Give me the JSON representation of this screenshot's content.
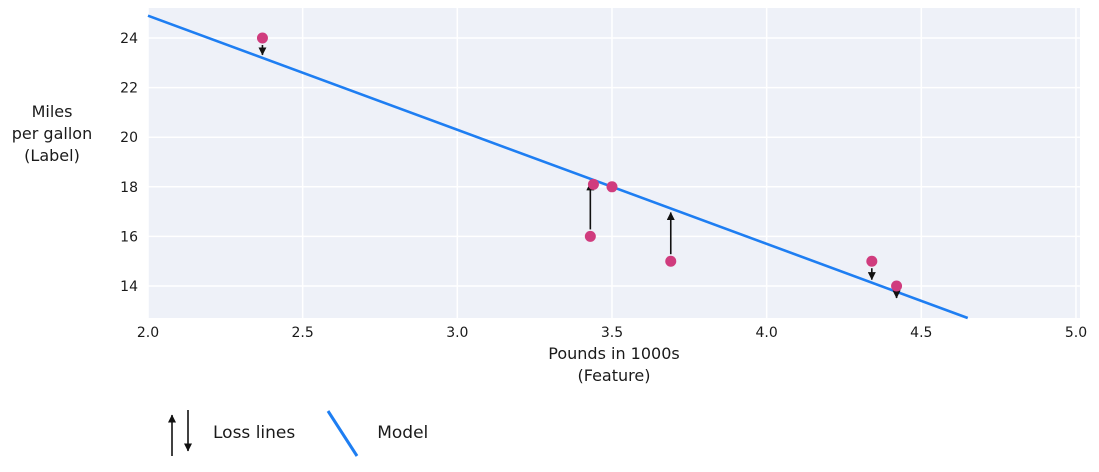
{
  "chart_data": {
    "type": "scatter",
    "title": "",
    "xlabel_lines": [
      "Pounds in 1000s",
      "(Feature)"
    ],
    "ylabel_lines": [
      "Miles",
      "per gallon",
      "(Label)"
    ],
    "x_ticks": [
      2.0,
      2.5,
      3.0,
      3.5,
      4.0,
      4.5,
      5.0
    ],
    "x_tick_labels": [
      "2.0",
      "2.5",
      "3.0",
      "3.5",
      "4.0",
      "4.5",
      "5.0"
    ],
    "y_ticks": [
      14,
      16,
      18,
      20,
      22,
      24
    ],
    "y_tick_labels": [
      "14",
      "16",
      "18",
      "20",
      "22",
      "24"
    ],
    "xlim": [
      2.0,
      5.013
    ],
    "ylim": [
      12.71,
      25.21
    ],
    "grid": true,
    "points": [
      {
        "x": 2.37,
        "y": 24,
        "loss_arrow": true
      },
      {
        "x": 3.44,
        "y": 18.1,
        "loss_arrow": false
      },
      {
        "x": 3.5,
        "y": 18,
        "loss_arrow": false
      },
      {
        "x": 3.43,
        "y": 16,
        "loss_arrow": true
      },
      {
        "x": 3.69,
        "y": 15,
        "loss_arrow": true
      },
      {
        "x": 4.34,
        "y": 15,
        "loss_arrow": true
      },
      {
        "x": 4.42,
        "y": 14,
        "loss_arrow": true
      }
    ],
    "model": {
      "slope": -4.6,
      "intercept": 34.1
    },
    "legend": [
      {
        "label": "Loss lines",
        "glyph": "loss-arrows"
      },
      {
        "label": "Model",
        "glyph": "line"
      }
    ],
    "legend_position": "bottom-left",
    "colors": {
      "point": "#d03c7e",
      "model_line": "#1e7ef2",
      "plot_bg": "#eef1f8",
      "grid": "#ffffff",
      "arrow": "#111111",
      "text": "#1a1a1a"
    }
  }
}
